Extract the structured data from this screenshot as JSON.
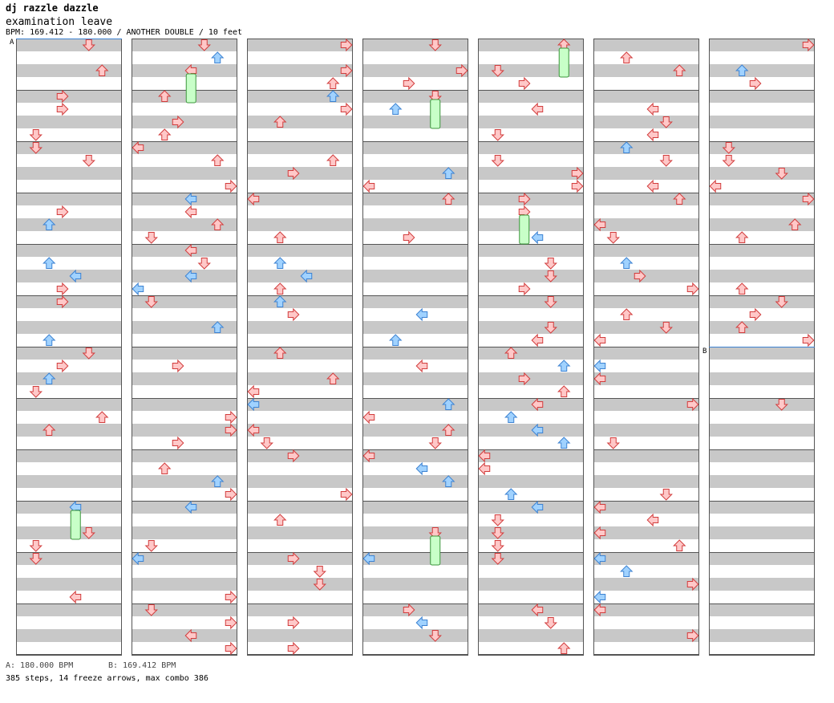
{
  "song": {
    "artist": "dj razzle dazzle",
    "title": "examination leave",
    "bpm_line": "BPM: 169.412 - 180.000 / ANOTHER DOUBLE / 10 feet"
  },
  "bpm_markers": [
    {
      "marker": "A",
      "label": "A: 180.000 BPM"
    },
    {
      "marker": "B",
      "label": "B: 169.412 BPM"
    }
  ],
  "stats": "385 steps, 14 freeze arrows, max combo 386",
  "colors": {
    "stripe_gray": "#c8c8c8",
    "stripe_white": "#ffffff",
    "panel_border": "#555555",
    "red_arrow_fill": "#ffc8c8",
    "red_arrow_stroke": "#d23c3c",
    "blue_arrow_fill": "#a0d2ff",
    "blue_arrow_stroke": "#3c82d2",
    "freeze_fill": "#c8ffc8",
    "freeze_stroke": "#3c963c",
    "bpm_line": "#3c82d2"
  },
  "chart_note": "Double-style step chart: 7 columns of 12 measures each, 8 lanes (P1 L D U R, P2 L D U R); 16 steps per measure"
}
